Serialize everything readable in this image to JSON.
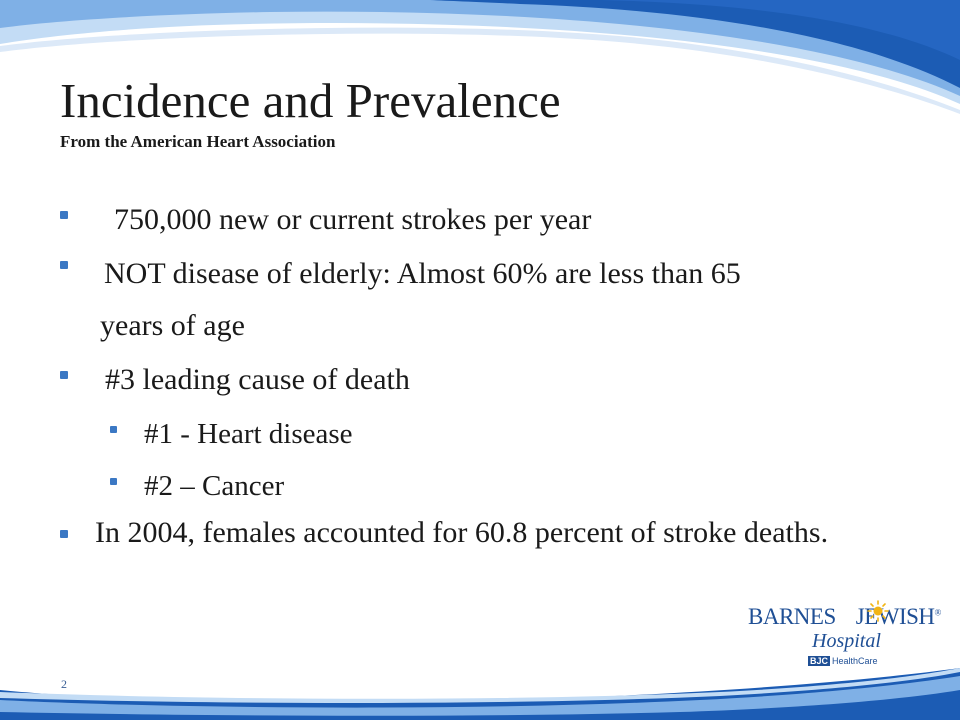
{
  "slide": {
    "title": "Incidence and Prevalence",
    "subtitle": "From the American Heart Association",
    "slide_number": "2"
  },
  "bullets": {
    "b1": "750,000 new or current strokes per year",
    "b2_line1": "NOT disease of elderly: Almost 60% are less than 65",
    "b2_line2": "years of age",
    "b3": "#3 leading cause of death",
    "b3_sub1": "#1 - Heart disease",
    "b3_sub2": "#2 – Cancer",
    "b4": "In 2004, females accounted for 60.8 percent of stroke deaths."
  },
  "logo": {
    "brand_left": "BARNES",
    "brand_right": "JEWISH",
    "trademark": "®",
    "hospital": "Hospital",
    "bjc": "BJC",
    "healthcare": "HealthCare"
  },
  "colors": {
    "band_light": "#c3dcf5",
    "band_mid": "#5b95d8",
    "band_dark": "#1c5cb4",
    "bullet": "#3b78c4",
    "logo_blue": "#1f4f95",
    "logo_sun": "#f2b515"
  }
}
